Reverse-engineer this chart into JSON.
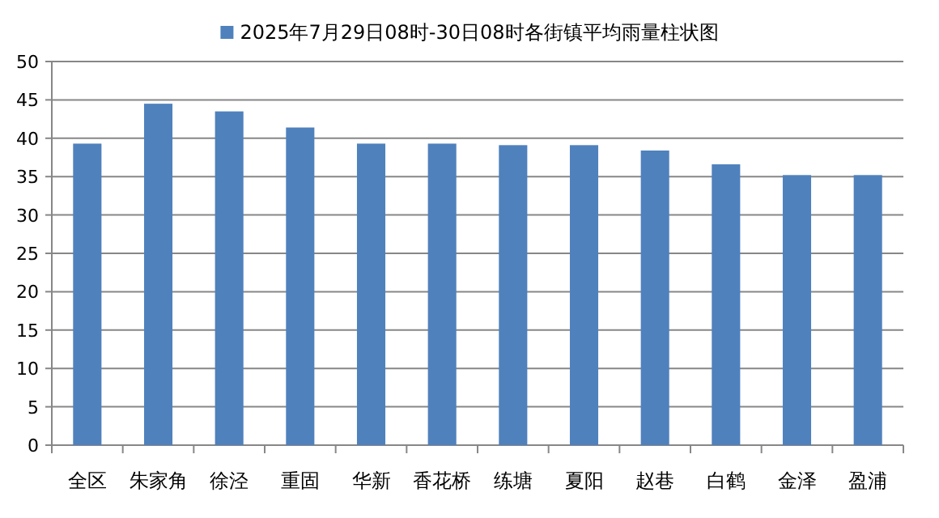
{
  "chart_data": {
    "type": "bar",
    "categories": [
      "全区",
      "朱家角",
      "徐泾",
      "重固",
      "华新",
      "香花桥",
      "练塘",
      "夏阳",
      "赵巷",
      "白鹤",
      "金泽",
      "盈浦"
    ],
    "series": [
      {
        "name": "2025年7月29日08时-30日08时各街镇平均雨量柱状图",
        "color": "#4f81bd",
        "values": [
          39.3,
          44.5,
          43.5,
          41.4,
          39.3,
          39.3,
          39.1,
          39.1,
          38.4,
          36.6,
          35.2,
          35.2
        ]
      }
    ],
    "ylim": [
      0,
      50
    ],
    "yticks": [
      0,
      5,
      10,
      15,
      20,
      25,
      30,
      35,
      40,
      45,
      50
    ],
    "grid": "y",
    "legend": "top"
  }
}
